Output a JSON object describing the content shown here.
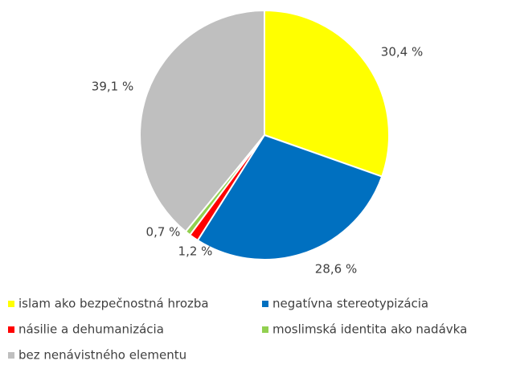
{
  "chart_data": {
    "type": "pie",
    "categories": [
      "islam ako bezpečnostná hrozba",
      "negatívna stereotypizácia",
      "násilie a dehumanizácia",
      "moslimská identita ako nadávka",
      "bez nenávistného elementu"
    ],
    "values": [
      30.4,
      28.6,
      1.2,
      0.7,
      39.1
    ],
    "value_labels": [
      "30,4 %",
      "28,6 %",
      "1,2 %",
      "0,7 %",
      "39,1 %"
    ],
    "colors": [
      "#ffff00",
      "#0070c0",
      "#ff0000",
      "#92d050",
      "#bfbfbf"
    ],
    "legend": "bottom"
  }
}
